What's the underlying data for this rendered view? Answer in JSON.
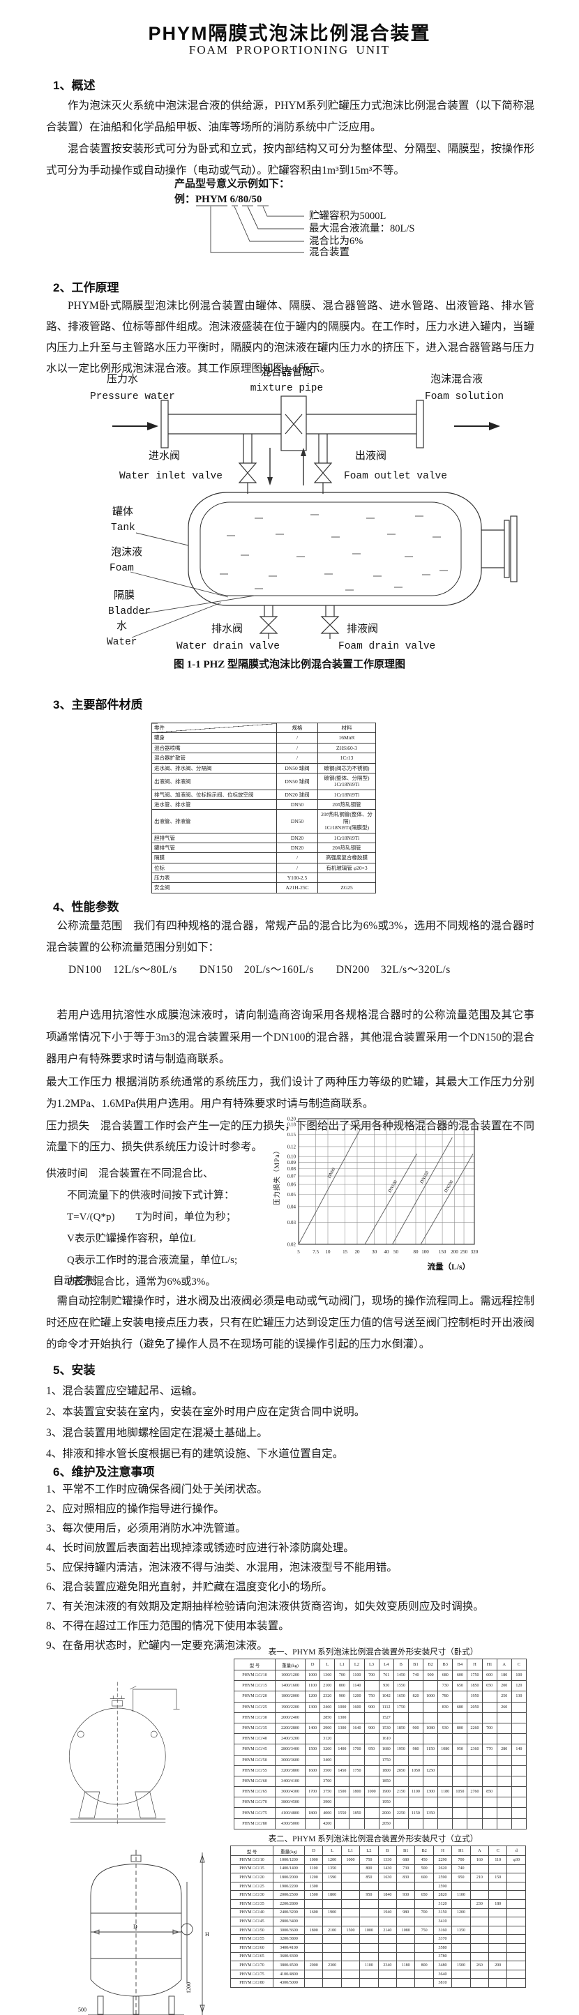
{
  "page": {
    "title": "PHYM隔膜式泡沫比例混合装置",
    "subtitle": "FOAM PROPORTIONING UNIT"
  },
  "s1": {
    "heading": "1、概述",
    "p1": "作为泡沫灭火系统中泡沫混合液的供给源，PHYM系列贮罐压力式泡沫比例混合装置（以下简称混合装置）在油船和化学品船甲板、油库等场所的消防系统中广泛应用。",
    "p2": "混合装置按安装形式可分为卧式和立式，按内部结构又可分为整体型、分隔型、隔膜型，按操作形式可分为手动操作或自动操作（电动或气动）。贮罐容积由1m³到15m³不等。",
    "model": {
      "intro": "产品型号意义示例如下：",
      "example_label": "例：PHYM 6/80/50",
      "callouts": [
        "贮罐容积为5000L",
        "最大混合液流量：80L/S",
        "混合比为6%",
        "混合装置"
      ]
    }
  },
  "s2": {
    "heading": "2、工作原理",
    "p1": "PHYM卧式隔膜型泡沫比例混合装置由罐体、隔膜、混合器管路、进水管路、出液管路、排水管路、排液管路、位标等部件组成。泡沫液盛装在位于罐内的隔膜内。在工作时，压力水进入罐内，当罐内压力上升至与主管路水压力平衡时，隔膜内的泡沫液在罐内压力水的挤压下，进入混合器管路与压力水以一定比例形成泡沫混合液。其工作原理图如图1-1所示。",
    "caption": "图 1-1 PHZ 型隔膜式泡沫比例混合装置工作原理图",
    "diagram": {
      "pressure_water_cn": "压力水",
      "pressure_water_en": "Pressure water",
      "mixture_pipe_cn": "混合器管路",
      "mixture_pipe_en": "mixture pipe",
      "foam_solution_cn": "泡沫混合液",
      "foam_solution_en": "Foam solution",
      "water_inlet_cn": "进水阀",
      "water_inlet_en": "Water inlet valve",
      "foam_outlet_cn": "出液阀",
      "foam_outlet_en": "Foam outlet valve",
      "tank_cn": "罐体",
      "tank_en": "Tank",
      "foam_cn": "泡沫液",
      "foam_en": "Foam",
      "bladder_cn": "隔膜",
      "bladder_en": "Bladder",
      "water_cn": "水",
      "water_en": "Water",
      "water_drain_cn": "排水阀",
      "water_drain_en": "Water drain valve",
      "foam_drain_cn": "排液阀",
      "foam_drain_en": "Foam drain valve"
    }
  },
  "s3": {
    "heading": "3、主要部件材质",
    "table": {
      "headers": [
        "零件",
        "规格",
        "材料"
      ],
      "rows": [
        [
          "罐身",
          "/",
          "16MnR"
        ],
        [
          "混合器喷嘴",
          "/",
          "ZHSi60-3"
        ],
        [
          "混合器扩散管",
          "/",
          "1Cr13"
        ],
        [
          "进水阀、排水阀、分隔阀",
          "DN50 球阀",
          "碳钢(阀芯为不锈钢)"
        ],
        [
          "出液阀、排液阀",
          "DN50 球阀",
          "碳钢(整体、分隔型)\n1Cr18Ni9Ti"
        ],
        [
          "排气阀、加液阀、位标指示阀、位标放空阀",
          "DN20 球阀",
          "1Cr18Ni9Ti"
        ],
        [
          "进水管、排水管",
          "DN50",
          "20#热轧钢管"
        ],
        [
          "出液管、排液管",
          "DN50",
          "20#热轧钢管(整体、分隔)\n1Cr18Ni9Ti(隔膜型)"
        ],
        [
          "胆排气管",
          "DN20",
          "1Cr18Ni9Ti"
        ],
        [
          "罐排气管",
          "DN20",
          "20#热轧钢管"
        ],
        [
          "隔膜",
          "/",
          "高强度复合橡胶膜"
        ],
        [
          "位标",
          "/",
          "有机玻璃管 φ20×3"
        ],
        [
          "压力表",
          "Y100-2.5",
          ""
        ],
        [
          "安全阀",
          "A21H-25C",
          "ZG25"
        ]
      ]
    }
  },
  "s4": {
    "heading": "4、性能参数",
    "p_flow1": "公称流量范围　我们有四种规格的混合器，常规产品的混合比为6%或3%，选用不同规格的混合器时混合装置的公称流量范围分别如下：",
    "p_dn": "DN100　12L/s～80L/s　　DN150　20L/s～160L/s　　DN200　32L/s～320L/s",
    "p_solvent": "若用户选用抗溶性水成膜泡沫液时，请向制造商咨询采用各规格混合器时的公称流量范围及其它事项。",
    "p_usual": "通常情况下小于等于3m3的混合装置采用一个DN100的混合器，其他混合装置采用一个DN150的混合器用户有特殊要求时请与制造商联系。",
    "p_pressure": "最大工作压力 根据消防系统通常的系统压力，我们设计了两种压力等级的贮罐，其最大工作压力分别为1.2MPa、1.6MPa供用户选用。用户有特殊要求时请与制造商联系。",
    "p_loss": "压力损失　混合装置工作时会产生一定的压力损失，下图给出了采用各种规格混合器的混合装置在不同流量下的压力、损失供系统压力设计时参考。",
    "supply_lines": [
      "供液时间　混合装置在不同混合比、",
      "不同流量下的供液时间按下式计算：",
      "T=V/(Q*p)　　T为时间，单位为秒；",
      "V表示贮罐操作容积，单位L",
      "Q表示工作时的混合液流量，单位L/s;",
      "P表示混合比，通常为6%或3%。"
    ],
    "auto_heading": "自动控制",
    "auto_p": "需自动控制贮罐操作时，进水阀及出液阀必须是电动或气动阀门，现场的操作流程同上。需远程控制时还应在贮罐上安装电接点压力表，只有在贮罐压力达到设定压力值的信号送至阀门控制柜时开出液阀的命令才开始执行（避免了操作人员不在现场可能的误操作引起的压力水倒灌）。"
  },
  "chart_data": {
    "type": "line",
    "x_scale": "log",
    "y_scale": "log",
    "xlim": [
      5,
      320
    ],
    "ylim": [
      0.02,
      0.2
    ],
    "x_ticks": [
      5,
      7.5,
      10,
      15,
      20,
      30,
      40,
      50,
      80,
      100,
      150,
      200,
      250,
      320
    ],
    "y_ticks": [
      0.02,
      0.03,
      0.04,
      0.05,
      0.06,
      0.07,
      0.08,
      0.09,
      0.1,
      0.12,
      0.15,
      0.18,
      0.2
    ],
    "xlabel": "流量（L/s）",
    "ylabel": "压力损失（MPa）",
    "grid": true,
    "legend_position": "on-line labels",
    "series": [
      {
        "name": "DN80",
        "points": [
          [
            5,
            0.02
          ],
          [
            22,
            0.17
          ]
        ]
      },
      {
        "name": "DN100",
        "points": [
          [
            24,
            0.02
          ],
          [
            82,
            0.105
          ]
        ]
      },
      {
        "name": "DN150",
        "points": [
          [
            46,
            0.02
          ],
          [
            190,
            0.142
          ]
        ]
      },
      {
        "name": "DN200",
        "points": [
          [
            90,
            0.02
          ],
          [
            310,
            0.105
          ]
        ]
      }
    ]
  },
  "s5": {
    "heading": "5、安装",
    "items": [
      "1、混合装置应空罐起吊、运输。",
      "2、本装置宜安装在室内，安装在室外时用户应在定货合同中说明。",
      "3、混合装置用地脚螺栓固定在混凝土基础上。",
      "4、排液和排水管长度根据已有的建筑设施、下水道位置自定。"
    ]
  },
  "s6": {
    "heading": "6、维护及注意事项",
    "items": [
      "1、平常不工作时应确保各阀门处于关闭状态。",
      "2、应对照相应的操作指导进行操作。",
      "3、每次使用后，必须用消防水冲洗管道。",
      "4、长时间放置后表面若出现掉漆或锈迹时应进行补漆防腐处理。",
      "5、应保持罐内清洁，泡沫液不得与油类、水混用，泡沫液型号不能用错。",
      "6、混合装置应避免阳光直射，并贮藏在温度变化小的场所。",
      "7、有关泡沫液的有效期及定期抽样检验请向泡沫液供货商咨询，如失效变质则应及时调换。",
      "8、不得在超过工作压力范围的情况下使用本装置。",
      "9、在备用状态时，贮罐内一定要充满泡沫液。"
    ]
  },
  "t1": {
    "caption": "表一、PHYM 系列泡沫比例混合装置外形安装尺寸（卧式）",
    "headers": [
      "型  号",
      "重量(kg)",
      "D",
      "L",
      "L1",
      "L2",
      "L3",
      "L4",
      "B",
      "B1",
      "B2",
      "B3",
      "B4",
      "H",
      "H1",
      "A",
      "C"
    ],
    "rows": [
      [
        "PHYM □/□/10",
        "1000/1200",
        "1000",
        "1360",
        "700",
        "1100",
        "700",
        "761",
        "1450",
        "740",
        "900",
        "680",
        "600",
        "1750",
        "600",
        "180",
        "100"
      ],
      [
        "PHYM □/□/15",
        "1400/1600",
        "1100",
        "2100",
        "800",
        "1140",
        "",
        "930",
        "1550",
        "",
        "",
        "730",
        "650",
        "1850",
        "650",
        "200",
        "120"
      ],
      [
        "PHYM □/□/20",
        "1800/2000",
        "1200",
        "2320",
        "900",
        "1200",
        "750",
        "1042",
        "1650",
        "820",
        "1000",
        "780",
        "",
        "1950",
        "",
        "250",
        "130"
      ],
      [
        "PHYM □/□/25",
        "1900/2200",
        "1300",
        "2460",
        "1000",
        "1600",
        "900",
        "1112",
        "1750",
        "",
        "",
        "830",
        "680",
        "2050",
        "",
        "260",
        ""
      ],
      [
        "PHYM □/□/30",
        "2000/2400",
        "",
        "2850",
        "1300",
        "",
        "",
        "1527",
        "",
        "",
        "",
        "",
        "",
        "",
        "",
        "",
        ""
      ],
      [
        "PHYM □/□/35",
        "2200/2800",
        "1400",
        "2900",
        "1300",
        "1640",
        "900",
        "1530",
        "1850",
        "900",
        "1080",
        "930",
        "800",
        "2260",
        "700",
        "",
        ""
      ],
      [
        "PHYM □/□/40",
        "2400/3200",
        "",
        "3120",
        "",
        "",
        "",
        "1610",
        "",
        "",
        "",
        "",
        "",
        "",
        "",
        "",
        ""
      ],
      [
        "PHYM □/□/45",
        "2800/3400",
        "1500",
        "3200",
        "1400",
        "1700",
        "950",
        "1680",
        "1950",
        "980",
        "1150",
        "1080",
        "950",
        "2360",
        "770",
        "280",
        "140"
      ],
      [
        "PHYM □/□/50",
        "3000/3600",
        "",
        "3400",
        "",
        "",
        "",
        "1750",
        "",
        "",
        "",
        "",
        "",
        "",
        "",
        "",
        ""
      ],
      [
        "PHYM □/□/55",
        "3200/3800",
        "1600",
        "3500",
        "1450",
        "1750",
        "",
        "1800",
        "2050",
        "1050",
        "1250",
        "",
        "",
        "",
        "",
        "",
        ""
      ],
      [
        "PHYM □/□/60",
        "3400/4100",
        "",
        "3700",
        "",
        "",
        "",
        "1850",
        "",
        "",
        "",
        "",
        "",
        "",
        "",
        "",
        ""
      ],
      [
        "PHYM □/□/65",
        "3600/4300",
        "1700",
        "3750",
        "1500",
        "1800",
        "1000",
        "1900",
        "2150",
        "1100",
        "1300",
        "1180",
        "1050",
        "2760",
        "850",
        "",
        ""
      ],
      [
        "PHYM □/□/70",
        "3800/4500",
        "",
        "3900",
        "",
        "",
        "",
        "1950",
        "",
        "",
        "",
        "",
        "",
        "",
        "",
        "",
        ""
      ],
      [
        "PHYM □/□/75",
        "4100/4800",
        "1800",
        "4000",
        "1550",
        "1850",
        "",
        "2000",
        "2250",
        "1150",
        "1350",
        "",
        "",
        "",
        "",
        "",
        ""
      ],
      [
        "PHYM □/□/80",
        "4300/5000",
        "",
        "4200",
        "",
        "",
        "",
        "2050",
        "",
        "",
        "",
        "",
        "",
        "",
        "",
        "",
        ""
      ]
    ]
  },
  "t2": {
    "caption": "表二、PHYM 系列泡沫比例混合装置外形安装尺寸（立式）",
    "headers": [
      "型  号",
      "重量(kg)",
      "D",
      "L",
      "L1",
      "L2",
      "B",
      "B1",
      "B2",
      "H",
      "H1",
      "A",
      "C",
      "d"
    ],
    "rows": [
      [
        "PHYM □/□/10",
        "1000/1200",
        "1000",
        "1200",
        "1000",
        "750",
        "1330",
        "680",
        "450",
        "2290",
        "700",
        "160",
        "110",
        "φ30"
      ],
      [
        "PHYM □/□/15",
        "1400/1400",
        "1100",
        "1350",
        "",
        "800",
        "1430",
        "730",
        "500",
        "2620",
        "740",
        "",
        "",
        ""
      ],
      [
        "PHYM □/□/20",
        "1800/2000",
        "1200",
        "1590",
        "",
        "850",
        "1630",
        "830",
        "600",
        "2590",
        "950",
        "210",
        "150",
        ""
      ],
      [
        "PHYM □/□/25",
        "1900/2200",
        "1300",
        "",
        "",
        "",
        "",
        "",
        "",
        "2590",
        "",
        "",
        "",
        ""
      ],
      [
        "PHYM □/□/30",
        "2000/2500",
        "1500",
        "1800",
        "",
        "950",
        "1840",
        "930",
        "650",
        "2820",
        "1100",
        "",
        "",
        ""
      ],
      [
        "PHYM □/□/35",
        "2200/2800",
        "",
        "",
        "",
        "",
        "",
        "",
        "",
        "3120",
        "",
        "230",
        "180",
        ""
      ],
      [
        "PHYM □/□/40",
        "2400/3200",
        "1600",
        "1900",
        "",
        "",
        "1940",
        "980",
        "700",
        "3150",
        "1200",
        "",
        "",
        ""
      ],
      [
        "PHYM □/□/45",
        "2800/3400",
        "",
        "",
        "",
        "",
        "",
        "",
        "",
        "3410",
        "",
        "",
        "",
        ""
      ],
      [
        "PHYM □/□/50",
        "3000/3600",
        "1800",
        "2100",
        "1500",
        "1000",
        "2140",
        "1080",
        "750",
        "3160",
        "1350",
        "",
        "",
        ""
      ],
      [
        "PHYM □/□/55",
        "3200/3800",
        "",
        "",
        "",
        "",
        "",
        "",
        "",
        "3370",
        "",
        "",
        "",
        ""
      ],
      [
        "PHYM □/□/60",
        "3400/4100",
        "",
        "",
        "",
        "",
        "",
        "",
        "",
        "3580",
        "",
        "",
        "",
        ""
      ],
      [
        "PHYM □/□/65",
        "3600/4300",
        "",
        "",
        "",
        "",
        "",
        "",
        "",
        "3780",
        "",
        "",
        "",
        ""
      ],
      [
        "PHYM □/□/70",
        "3800/4500",
        "2000",
        "2300",
        "",
        "1100",
        "2340",
        "1180",
        "800",
        "3480",
        "1500",
        "260",
        "200",
        ""
      ],
      [
        "PHYM □/□/75",
        "4100/4800",
        "",
        "",
        "",
        "",
        "",
        "",
        "",
        "3640",
        "",
        "",
        "",
        ""
      ],
      [
        "PHYM □/□/80",
        "4300/5000",
        "",
        "",
        "",
        "",
        "",
        "",
        "",
        "3810",
        "",
        "",
        "",
        ""
      ]
    ],
    "drawing_labels": {
      "d": "D",
      "h": "H",
      "h1": "1200",
      "foot": "500",
      "b": "B",
      "b1": "B1",
      "b2": "B2"
    }
  }
}
